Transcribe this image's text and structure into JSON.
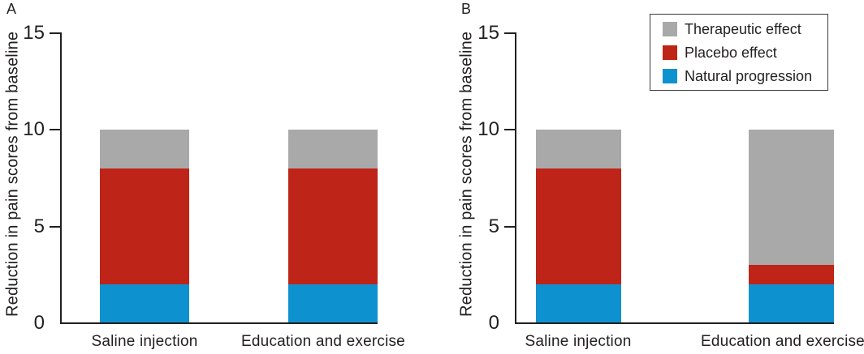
{
  "figure": {
    "panels": [
      {
        "letter": "A"
      },
      {
        "letter": "B"
      }
    ]
  },
  "axis": {
    "ylabel": "Reduction in pain scores from baseline",
    "ytick_labels": [
      "0",
      "5",
      "10",
      "15"
    ]
  },
  "legend": {
    "items": [
      {
        "label": "Therapeutic effect",
        "color": "#a9a9a9"
      },
      {
        "label": "Placebo effect",
        "color": "#bf2418"
      },
      {
        "label": "Natural progression",
        "color": "#0e92cf"
      }
    ]
  },
  "chart_data": [
    {
      "panel": "A",
      "type": "bar",
      "stacked": true,
      "categories": [
        "Saline injection",
        "Education and exercise"
      ],
      "series": [
        {
          "name": "Natural progression",
          "color": "#0e92cf",
          "values": [
            2,
            2
          ]
        },
        {
          "name": "Placebo effect",
          "color": "#bf2418",
          "values": [
            6,
            6
          ]
        },
        {
          "name": "Therapeutic effect",
          "color": "#a9a9a9",
          "values": [
            2,
            2
          ]
        }
      ],
      "bar_totals": [
        10,
        10
      ],
      "ylabel": "Reduction in pain scores from baseline",
      "ylim": [
        0,
        15
      ],
      "yticks": [
        0,
        5,
        10,
        15
      ],
      "grid": false,
      "legend_position": "none"
    },
    {
      "panel": "B",
      "type": "bar",
      "stacked": true,
      "categories": [
        "Saline injection",
        "Education and exercise"
      ],
      "series": [
        {
          "name": "Natural progression",
          "color": "#0e92cf",
          "values": [
            2,
            2
          ]
        },
        {
          "name": "Placebo effect",
          "color": "#bf2418",
          "values": [
            6,
            1
          ]
        },
        {
          "name": "Therapeutic effect",
          "color": "#a9a9a9",
          "values": [
            2,
            7
          ]
        }
      ],
      "bar_totals": [
        10,
        10
      ],
      "ylabel": "Reduction in pain scores from baseline",
      "ylim": [
        0,
        15
      ],
      "yticks": [
        0,
        5,
        10,
        15
      ],
      "grid": false,
      "legend_position": "upper right"
    }
  ]
}
